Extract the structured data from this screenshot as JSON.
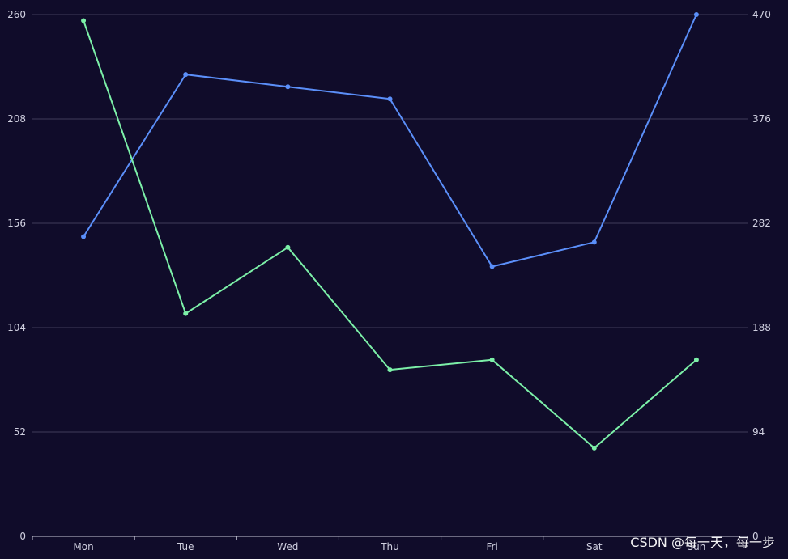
{
  "chart_data": {
    "type": "line",
    "categories": [
      "Mon",
      "Tue",
      "Wed",
      "Thu",
      "Fri",
      "Sat",
      "Sun"
    ],
    "y_left": {
      "min": 0,
      "max": 260,
      "ticks": [
        0,
        52,
        104,
        156,
        208,
        260
      ]
    },
    "y_right": {
      "min": 0,
      "max": 470,
      "ticks": [
        0,
        94,
        188,
        282,
        376,
        470
      ]
    },
    "series": [
      {
        "color": "#5b8ff9",
        "axis": "right",
        "values": [
          270,
          416,
          405,
          394,
          243,
          265,
          470
        ]
      },
      {
        "color": "#7cf0a8",
        "axis": "left",
        "values": [
          257,
          111,
          144,
          83,
          88,
          44,
          88
        ]
      }
    ],
    "grid": true,
    "colors": {
      "background": "#100c2a",
      "grid": "#3f3c5a",
      "axis_label": "#d0d0e0"
    }
  },
  "watermark": "CSDN @每一天，每一步"
}
